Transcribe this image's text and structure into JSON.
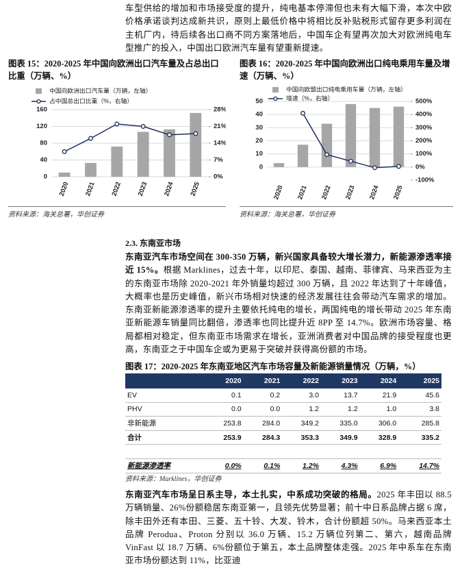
{
  "intro": {
    "text": "车型供给的增加和市场接受度的提升，纯电基本停滞但也未有大幅下滑，本次中欧价格承诺谈判达成新共识，原则上最低价格中将相比反补贴税形式留存更多利润在主机厂内，待后续各出口商不同方案落地后，中国车企有望再次加大对欧洲纯电车型推广的投入，中国出口欧洲汽车量有望重新提速。"
  },
  "chart_data": [
    {
      "type": "combo",
      "title": "图表 15：2020-2025 年中国向欧洲出口汽车量及占总出口比重（万辆、%）",
      "categories": [
        "2020",
        "2021",
        "2022",
        "2023",
        "2024",
        "2025"
      ],
      "series": [
        {
          "name": "中国向欧洲出口汽车量（万辆，左轴）",
          "type": "bar",
          "color": "#a6a6a6",
          "values": [
            10,
            33,
            72,
            107,
            113,
            152
          ]
        },
        {
          "name": "占中国总出口比重（%，右轴）",
          "type": "line",
          "axis": "y2",
          "color": "#1f2d5c",
          "values": [
            10.5,
            16,
            22,
            21,
            17.5,
            18
          ]
        }
      ],
      "ylim": [
        0,
        160
      ],
      "yticks": [
        0,
        40,
        80,
        120,
        160
      ],
      "y2lim": [
        0,
        28
      ],
      "y2ticks": [
        {
          "value": 0,
          "label": "0%"
        },
        {
          "value": 7,
          "label": "7%"
        },
        {
          "value": 14,
          "label": "14%"
        },
        {
          "value": 21,
          "label": "21%"
        },
        {
          "value": 28,
          "label": "28%"
        }
      ],
      "grid": true,
      "legend": "upper left",
      "source": "资料来源：海关总署，华创证券"
    },
    {
      "type": "combo",
      "title": "图表 16：2020-2025 年中国向欧洲出口纯电乘用车量及增速（万辆、%）",
      "categories": [
        "2020",
        "2021",
        "2022",
        "2023",
        "2024",
        "2025"
      ],
      "series": [
        {
          "name": "中国向欧盟出口纯电乘用车量（万辆，左轴）",
          "type": "bar",
          "color": "#a6a6a6",
          "values": [
            3,
            17,
            33,
            48,
            45,
            46
          ]
        },
        {
          "name": "增速（%，右轴）",
          "type": "line",
          "axis": "y2",
          "color": "#1f2d5c",
          "values": [
            null,
            410,
            95,
            45,
            -5,
            5
          ]
        }
      ],
      "ylim": [
        -10,
        50
      ],
      "yticks": [
        0,
        10,
        20,
        30,
        40,
        50
      ],
      "y2lim": [
        -100,
        500
      ],
      "y2ticks": [
        {
          "value": -100,
          "label": "-100%"
        },
        {
          "value": 0,
          "label": "0%"
        },
        {
          "value": 100,
          "label": "100%"
        },
        {
          "value": 200,
          "label": "200%"
        },
        {
          "value": 300,
          "label": "300%"
        },
        {
          "value": 400,
          "label": "400%"
        },
        {
          "value": 500,
          "label": "500%"
        }
      ],
      "grid": true,
      "legend": "upper left",
      "source": "资料来源：海关总署，华创证券"
    }
  ],
  "section": {
    "heading": "2.3. 东南亚市场",
    "lead": "东南亚汽车市场空间在 300-350 万辆，新兴国家具备较大增长潜力，新能源渗透率接近 15%。",
    "body": "根据 Marklines，过去十年，以印尼、泰国、越南、菲律宾、马来西亚为主的东南亚市场除 2020-2021 年外销量均超过 300 万辆，且 2022 年达到了十年峰值，大概率也是历史峰值，新兴市场相对快速的经济发展往往会带动汽车需求的增加。东南亚新能源渗透率的提升主要依托纯电的增长，两国纯电的增长带动 2025 年东南亚新能源车销量同比翻倍，渗透率也同比提升近 8PP 至 14.7%。欧洲市场容量、格局都相对稳定，但东南亚市场需求在增长，亚洲消费者对中国品牌的接受程度也更高，东南亚之于中国车企或为更易于突破并获得高份额的市场。"
  },
  "table": {
    "title": "图表 17：2020-2025 年东南亚地区汽车市场容量及新能源销量情况（万辆，%）",
    "columns": [
      "2020",
      "2021",
      "2022",
      "2023",
      "2024",
      "2025"
    ],
    "rows": [
      {
        "label": "EV",
        "cells": [
          "0.1",
          "0.2",
          "3.0",
          "13.7",
          "21.9",
          "45.6"
        ]
      },
      {
        "label": "PHV",
        "cells": [
          "0.0",
          "0.0",
          "1.2",
          "1.2",
          "1.0",
          "3.8"
        ]
      },
      {
        "label": "非新能源",
        "cells": [
          "253.8",
          "284.0",
          "349.2",
          "335.0",
          "306.0",
          "285.8"
        ]
      },
      {
        "label": "合计",
        "cells": [
          "253.9",
          "284.3",
          "353.3",
          "349.9",
          "328.9",
          "335.2"
        ]
      },
      {
        "label": "新能源渗透率",
        "cells": [
          "0.0%",
          "0.1%",
          "1.2%",
          "4.3%",
          "6.9%",
          "14.7%"
        ]
      }
    ],
    "source": "资料来源：Marklines，华创证券"
  },
  "closing": {
    "lead": "东南亚汽车市场呈日系主导，本土扎实，中系成功突破的格局。",
    "body": "2025 年丰田以 88.5 万辆销量、26%份额稳居东南亚第一，且领先优势显著；前十中日系品牌占据 6 席，除丰田外还有本田、三菱、五十铃、大发、铃木，合计份额超 50%。马来西亚本土品牌 Perodua、Proton 分别以 36.0 万辆、15.2 万辆位列第二、第六，越南品牌 VinFast 以 18.7 万辆、6%份额位于第五，本土品牌整体走强。2025 年中系车在东南亚市场份额达到 11%，比亚迪"
  }
}
